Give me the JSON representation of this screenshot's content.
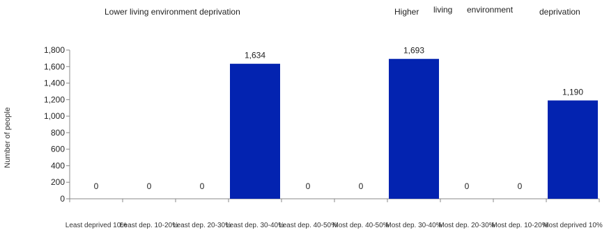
{
  "header": {
    "left_caption": "Lower living environment deprivation",
    "right_caption_words": [
      "Higher",
      "living",
      "environment",
      "deprivation"
    ]
  },
  "chart_data": {
    "type": "bar",
    "ylabel": "Number of people",
    "ylim": [
      0,
      1800
    ],
    "yticks": [
      0,
      200,
      400,
      600,
      800,
      1000,
      1200,
      1400,
      1600,
      1800
    ],
    "ytick_labels": [
      "0",
      "200",
      "400",
      "600",
      "800",
      "1,000",
      "1,200",
      "1,400",
      "1,600",
      "1,800"
    ],
    "categories": [
      "Least deprived 10%",
      "Least dep. 10-20%",
      "Least dep. 20-30%",
      "Least dep. 30-40%",
      "Least dep. 40-50%",
      "Most dep. 40-50%",
      "Most dep. 30-40%",
      "Most dep. 20-30%",
      "Most dep. 10-20%",
      "Most deprived 10%"
    ],
    "values": [
      0,
      0,
      0,
      1634,
      0,
      0,
      1693,
      0,
      0,
      1190
    ],
    "value_labels": [
      "0",
      "0",
      "0",
      "1,634",
      "0",
      "0",
      "1,693",
      "0",
      "0",
      "1,190"
    ],
    "bar_color": "#0323b0",
    "grid": false,
    "legend": "none"
  }
}
